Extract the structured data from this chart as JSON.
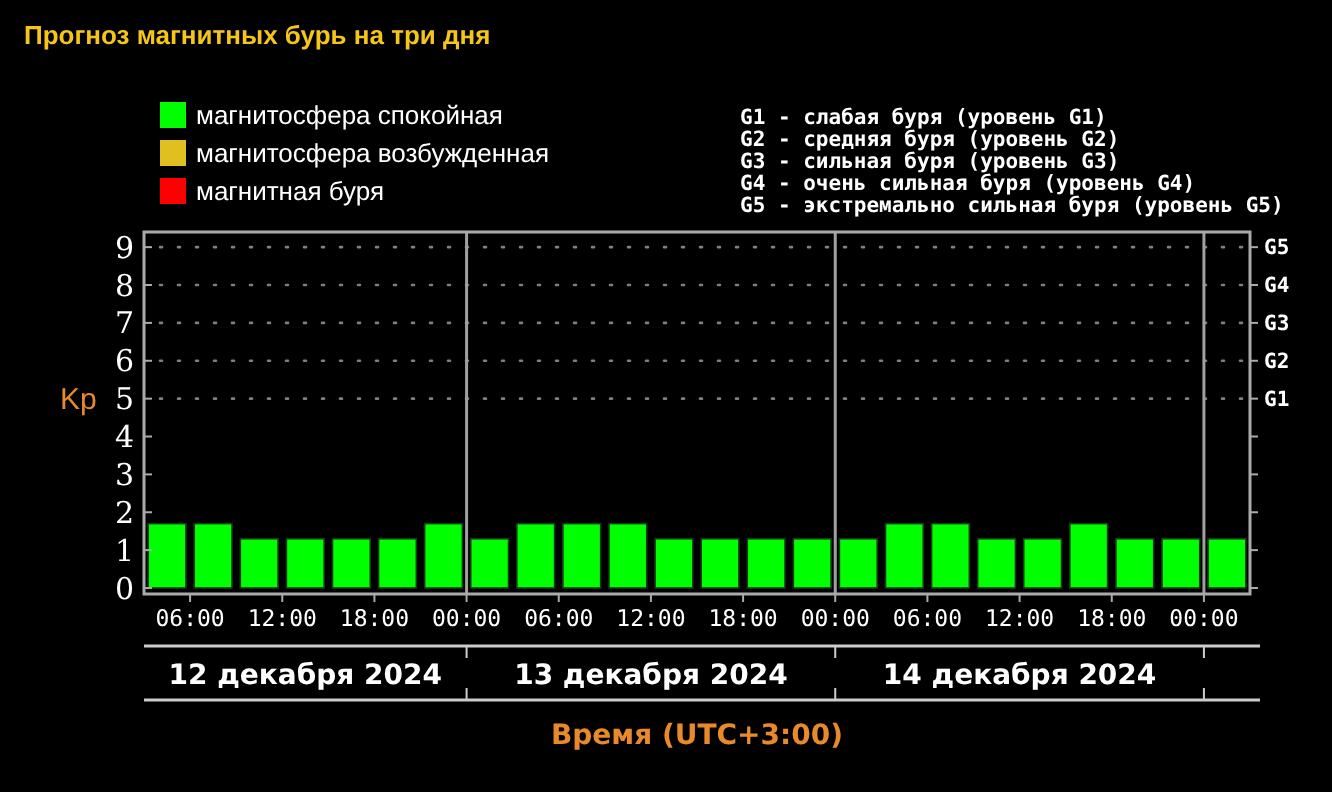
{
  "chart_data": {
    "type": "bar",
    "title": "Прогноз магнитных бурь на три дня",
    "ylabel": "Kp",
    "xlabel": "Время (UTC+3:00)",
    "x": [
      "2024-12-12T04:30",
      "2024-12-12T07:30",
      "2024-12-12T10:30",
      "2024-12-12T13:30",
      "2024-12-12T16:30",
      "2024-12-12T19:30",
      "2024-12-12T22:30",
      "2024-12-13T01:30",
      "2024-12-13T04:30",
      "2024-12-13T07:30",
      "2024-12-13T10:30",
      "2024-12-13T13:30",
      "2024-12-13T16:30",
      "2024-12-13T19:30",
      "2024-12-13T22:30",
      "2024-12-14T01:30",
      "2024-12-14T04:30",
      "2024-12-14T07:30",
      "2024-12-14T10:30",
      "2024-12-14T13:30",
      "2024-12-14T16:30",
      "2024-12-14T19:30",
      "2024-12-14T22:30",
      "2024-12-15T01:30"
    ],
    "series": [
      {
        "name": "магнитосфера спокойная",
        "color": "#00ff00",
        "values": [
          1.7,
          1.7,
          1.3,
          1.3,
          1.3,
          1.3,
          1.7,
          1.3,
          1.7,
          1.7,
          1.7,
          1.3,
          1.3,
          1.3,
          1.3,
          1.3,
          1.7,
          1.7,
          1.3,
          1.3,
          1.7,
          1.3,
          1.3,
          1.3
        ]
      },
      {
        "name": "магнитосфера возбужденная",
        "color": "#e0c020",
        "values": [
          null,
          null,
          null,
          null,
          null,
          null,
          null,
          null,
          null,
          null,
          null,
          null,
          null,
          null,
          null,
          null,
          null,
          null,
          null,
          null,
          null,
          null,
          null,
          null
        ]
      },
      {
        "name": "магнитная буря",
        "color": "#ff0000",
        "values": [
          null,
          null,
          null,
          null,
          null,
          null,
          null,
          null,
          null,
          null,
          null,
          null,
          null,
          null,
          null,
          null,
          null,
          null,
          null,
          null,
          null,
          null,
          null,
          null
        ]
      }
    ],
    "xlim": [
      "2024-12-12T03:00",
      "2024-12-15T03:00"
    ],
    "xticks": [
      {
        "value": "2024-12-12T06:00",
        "label": "06:00"
      },
      {
        "value": "2024-12-12T12:00",
        "label": "12:00"
      },
      {
        "value": "2024-12-12T18:00",
        "label": "18:00"
      },
      {
        "value": "2024-12-13T00:00",
        "label": "00:00"
      },
      {
        "value": "2024-12-13T06:00",
        "label": "06:00"
      },
      {
        "value": "2024-12-13T12:00",
        "label": "12:00"
      },
      {
        "value": "2024-12-13T18:00",
        "label": "18:00"
      },
      {
        "value": "2024-12-14T00:00",
        "label": "00:00"
      },
      {
        "value": "2024-12-14T06:00",
        "label": "06:00"
      },
      {
        "value": "2024-12-14T12:00",
        "label": "12:00"
      },
      {
        "value": "2024-12-14T18:00",
        "label": "18:00"
      },
      {
        "value": "2024-12-15T00:00",
        "label": "00:00"
      }
    ],
    "ylim": [
      0,
      9.4
    ],
    "yticks": [
      0,
      1,
      2,
      3,
      4,
      5,
      6,
      7,
      8,
      9
    ],
    "ref_lines": [
      {
        "axis": "y",
        "value": 5,
        "label": "G1",
        "line_style": "dotted",
        "color": "#808080"
      },
      {
        "axis": "y",
        "value": 6,
        "label": "G2",
        "line_style": "dotted",
        "color": "#808080"
      },
      {
        "axis": "y",
        "value": 7,
        "label": "G3",
        "line_style": "dotted",
        "color": "#808080"
      },
      {
        "axis": "y",
        "value": 8,
        "label": "G4",
        "line_style": "dotted",
        "color": "#808080"
      },
      {
        "axis": "y",
        "value": 9,
        "label": "G5",
        "line_style": "dotted",
        "color": "#808080"
      },
      {
        "axis": "x",
        "value": "2024-12-13T00:00",
        "line_style": "solid",
        "color": "#a0a0a0"
      },
      {
        "axis": "x",
        "value": "2024-12-14T00:00",
        "line_style": "solid",
        "color": "#a0a0a0"
      },
      {
        "axis": "x",
        "value": "2024-12-15T00:00",
        "line_style": "solid",
        "color": "#a0a0a0"
      }
    ],
    "annotations": [
      "G1 - слабая буря (уровень G1)",
      "G2 - средняя буря (уровень G2)",
      "G3 - сильная буря (уровень G3)",
      "G4 - очень сильная буря (уровень G4)",
      "G5 - экстремально сильная буря (уровень G5)",
      "12 декабря 2024",
      "13 декабря 2024",
      "14 декабря 2024"
    ],
    "legend": "top left"
  }
}
